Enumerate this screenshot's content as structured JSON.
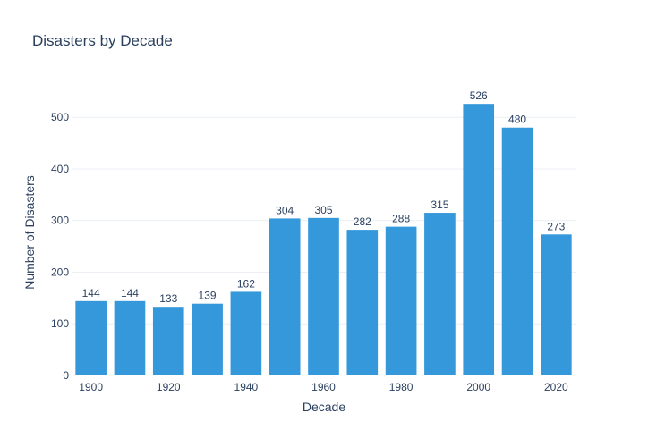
{
  "chart_data": {
    "type": "bar",
    "title": "Disasters by Decade",
    "xlabel": "Decade",
    "ylabel": "Number of Disasters",
    "categories": [
      "1900",
      "1910",
      "1920",
      "1930",
      "1940",
      "1950",
      "1960",
      "1970",
      "1980",
      "1990",
      "2000",
      "2010",
      "2020"
    ],
    "values": [
      144,
      144,
      133,
      139,
      162,
      304,
      305,
      282,
      288,
      315,
      526,
      480,
      273
    ],
    "x_tick_labels": [
      "1900",
      "1920",
      "1940",
      "1960",
      "1980",
      "2000",
      "2020"
    ],
    "y_ticks": [
      0,
      100,
      200,
      300,
      400,
      500
    ],
    "ylim": [
      0,
      554
    ],
    "grid": true,
    "bar_color": "#3498db"
  }
}
